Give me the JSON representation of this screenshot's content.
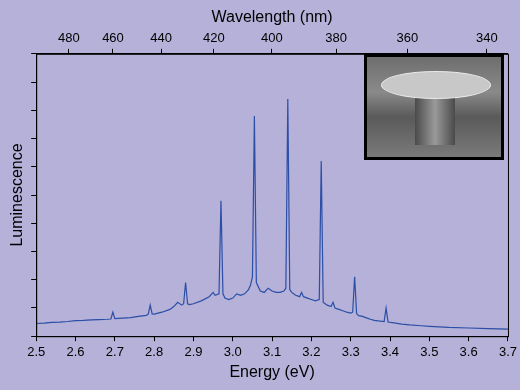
{
  "chart_data": {
    "type": "line",
    "xlabel": "Energy (eV)",
    "ylabel": "Luminescence",
    "x2label": "Wavelength (nm)",
    "x": [
      2.5,
      2.52,
      2.54,
      2.56,
      2.58,
      2.6,
      2.62,
      2.64,
      2.66,
      2.68,
      2.69,
      2.695,
      2.7,
      2.72,
      2.74,
      2.76,
      2.78,
      2.785,
      2.79,
      2.795,
      2.8,
      2.82,
      2.84,
      2.85,
      2.86,
      2.87,
      2.875,
      2.88,
      2.885,
      2.89,
      2.9,
      2.92,
      2.94,
      2.95,
      2.955,
      2.965,
      2.97,
      2.975,
      2.98,
      2.99,
      3.0,
      3.01,
      3.02,
      3.03,
      3.04,
      3.045,
      3.05,
      3.055,
      3.06,
      3.07,
      3.08,
      3.09,
      3.1,
      3.11,
      3.12,
      3.13,
      3.135,
      3.14,
      3.145,
      3.15,
      3.16,
      3.17,
      3.175,
      3.18,
      3.19,
      3.2,
      3.21,
      3.22,
      3.225,
      3.23,
      3.24,
      3.25,
      3.255,
      3.26,
      3.27,
      3.28,
      3.29,
      3.3,
      3.305,
      3.31,
      3.315,
      3.32,
      3.33,
      3.34,
      3.35,
      3.36,
      3.37,
      3.385,
      3.39,
      3.395,
      3.41,
      3.43,
      3.45,
      3.48,
      3.5,
      3.55,
      3.6,
      3.65,
      3.7
    ],
    "values": [
      4.5,
      4.6,
      4.9,
      5.0,
      5.2,
      5.5,
      5.6,
      5.8,
      5.9,
      6.0,
      6.1,
      8.5,
      6.2,
      6.4,
      6.6,
      7.0,
      7.4,
      7.8,
      11,
      7.9,
      7.8,
      8.5,
      9.5,
      10.5,
      12,
      11,
      11.5,
      19,
      11.5,
      11.2,
      11.5,
      12.5,
      14,
      15.5,
      14.5,
      15,
      48,
      15,
      13.5,
      13,
      13.5,
      15,
      14.5,
      15,
      16.5,
      18,
      21,
      78,
      19,
      16,
      15.5,
      17,
      16,
      15.5,
      15.5,
      16,
      17,
      84,
      16.5,
      15.5,
      14.5,
      14,
      15.5,
      14,
      13.5,
      13,
      12.5,
      13,
      62,
      12,
      11,
      10.5,
      12,
      10,
      9.5,
      9,
      8.5,
      8.2,
      8.5,
      21,
      8,
      7.3,
      7,
      6.5,
      6,
      5.6,
      5.4,
      5.2,
      10,
      5,
      4.7,
      4.3,
      4.0,
      3.7,
      3.5,
      3.1,
      2.9,
      2.7,
      2.5
    ],
    "color": "#2b4ea6",
    "xlim": [
      2.5,
      3.7
    ],
    "xticks": [
      2.5,
      2.6,
      2.7,
      2.8,
      2.9,
      {
        "value": 3,
        "label": "3.0"
      },
      3.1,
      3.2,
      3.3,
      3.4,
      3.5,
      3.6,
      3.7
    ],
    "x2lim": [
      495.94,
      335.09
    ],
    "x2ticks": [
      480,
      460,
      440,
      420,
      400,
      380,
      360,
      340
    ],
    "ylim": [
      0,
      100
    ],
    "yticks": [
      0,
      10,
      20,
      30,
      40,
      50,
      60,
      70,
      80,
      90,
      100
    ],
    "tick_labels": "x",
    "grid": false
  }
}
